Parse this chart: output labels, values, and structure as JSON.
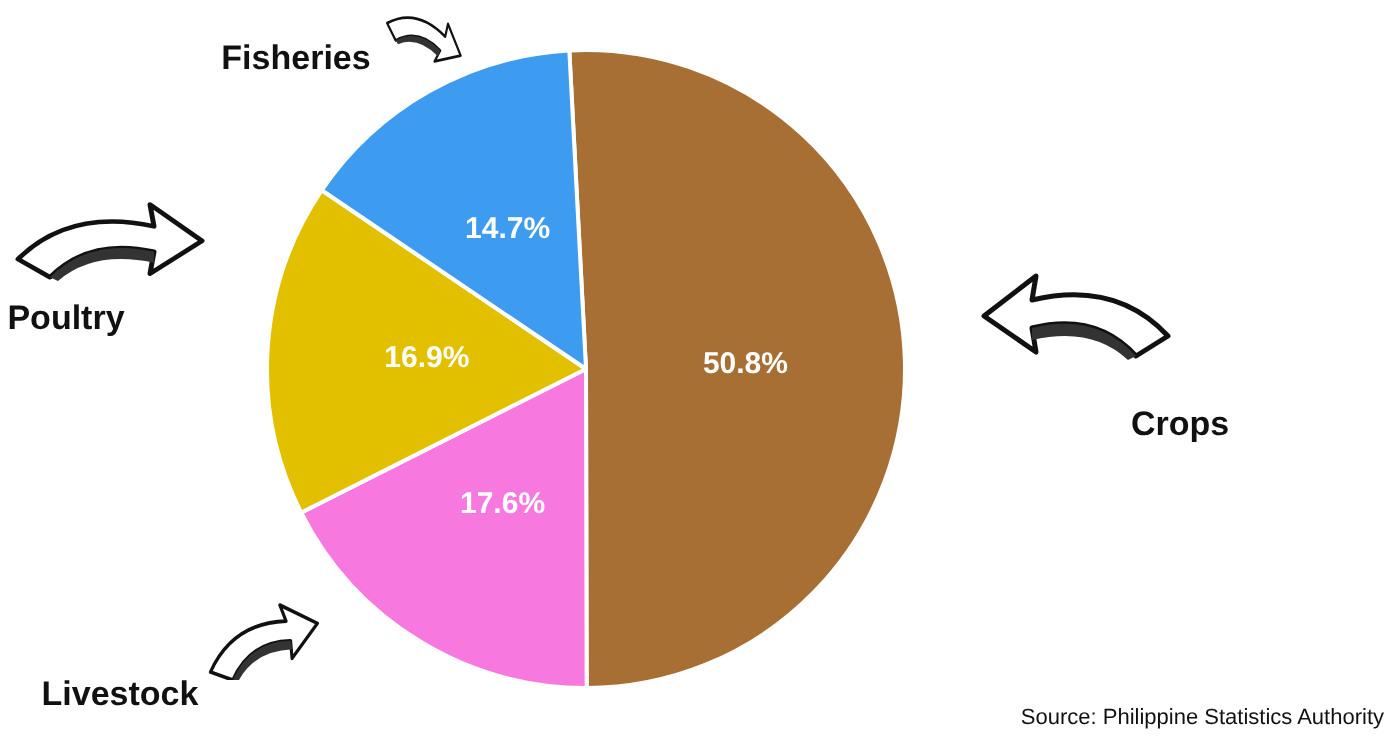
{
  "chart_data": {
    "type": "pie",
    "categories": [
      "Crops",
      "Livestock",
      "Poultry",
      "Fisheries"
    ],
    "values": [
      50.8,
      17.6,
      16.9,
      14.7
    ],
    "colors": [
      "#a86f35",
      "#f779e0",
      "#e2c000",
      "#3d9cf0"
    ],
    "value_labels": [
      "50.8%",
      "17.6%",
      "16.9%",
      "14.7%"
    ],
    "legend": false,
    "annotations": [
      "Source: Philippine Statistics Authority"
    ]
  }
}
